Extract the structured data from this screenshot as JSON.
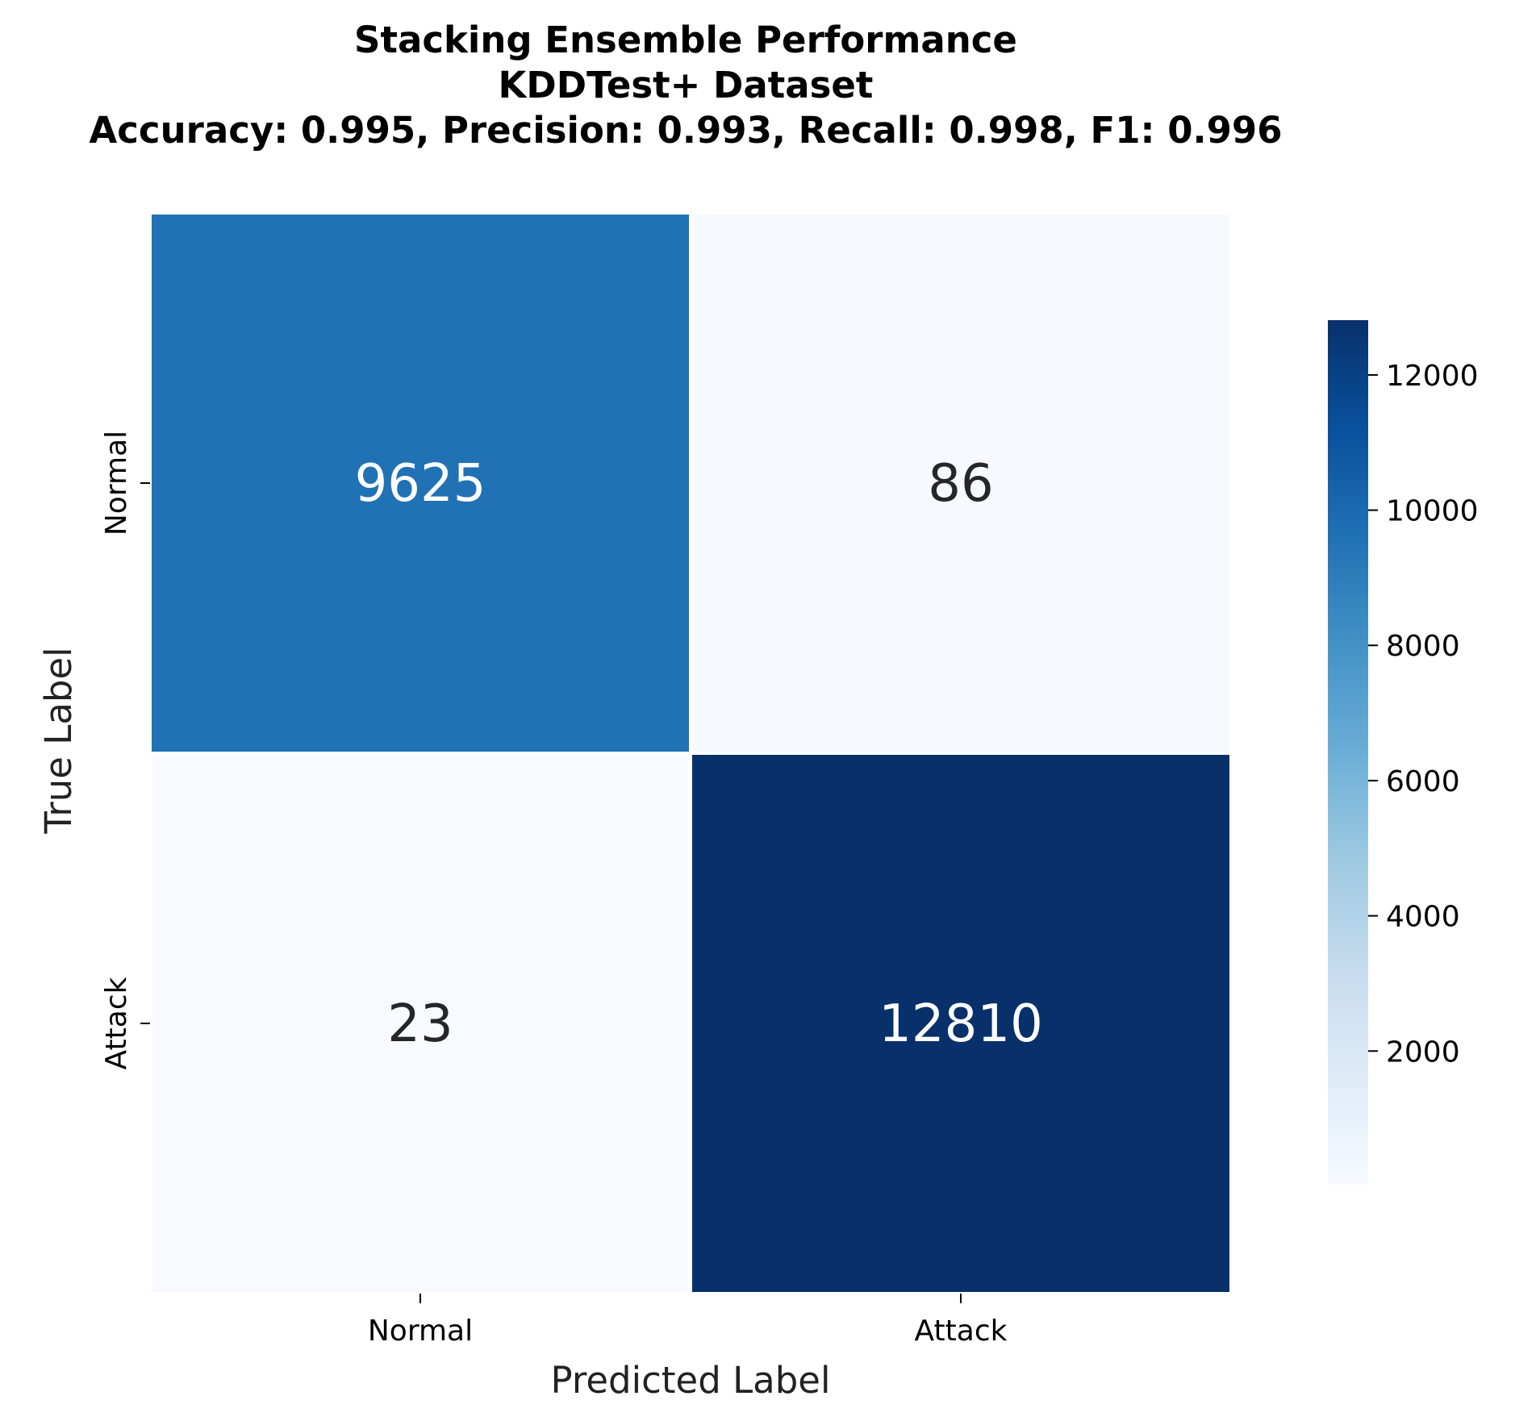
{
  "chart_data": {
    "type": "heatmap",
    "title_lines": [
      "Stacking Ensemble Performance",
      "KDDTest+ Dataset",
      "Accuracy: 0.995, Precision: 0.993, Recall: 0.998, F1: 0.996"
    ],
    "xlabel": "Predicted Label",
    "ylabel": "True Label",
    "x_categories": [
      "Normal",
      "Attack"
    ],
    "y_categories": [
      "Normal",
      "Attack"
    ],
    "matrix": [
      [
        9625,
        86
      ],
      [
        23,
        12810
      ]
    ],
    "colormap": "Blues",
    "colorbar": {
      "min": 23,
      "max": 12810,
      "ticks": [
        2000,
        4000,
        6000,
        8000,
        10000,
        12000
      ],
      "tick_labels": [
        "2000",
        "4000",
        "6000",
        "8000",
        "10000",
        "12000"
      ]
    }
  }
}
